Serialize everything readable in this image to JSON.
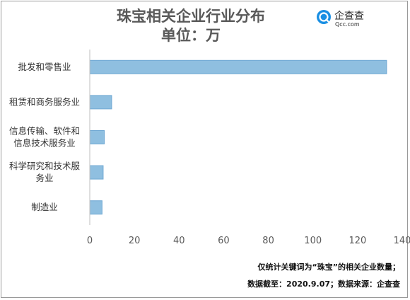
{
  "header": {
    "title_line1": "珠宝相关企业行业分布",
    "title_line2": "单位：万"
  },
  "brand": {
    "name": "企查查",
    "domain": "Qcc.com",
    "color": "#1a8fe3"
  },
  "chart_data": {
    "type": "bar",
    "orientation": "horizontal",
    "title": "珠宝相关企业行业分布",
    "subtitle": "单位：万",
    "categories": [
      [
        "批发和零售业"
      ],
      [
        "租赁和商务服务业"
      ],
      [
        "信息传输、软件和",
        "信息技术服务业"
      ],
      [
        "科学研究和技术服",
        "务业"
      ],
      [
        "制造业"
      ]
    ],
    "values": [
      133,
      9.8,
      6.5,
      6.0,
      5.5
    ],
    "xlim": [
      0,
      140
    ],
    "xticks": [
      0,
      20,
      40,
      60,
      80,
      100,
      120,
      140
    ],
    "grid": false,
    "bar_color": "#8fbfe0",
    "bar_edge_color": "#6fa8d3"
  },
  "footnote": {
    "line1": "仅统计关键词为“珠宝”的相关企业数量；",
    "line2": "数据截至：2020.9.07；数据来源：企查查"
  }
}
